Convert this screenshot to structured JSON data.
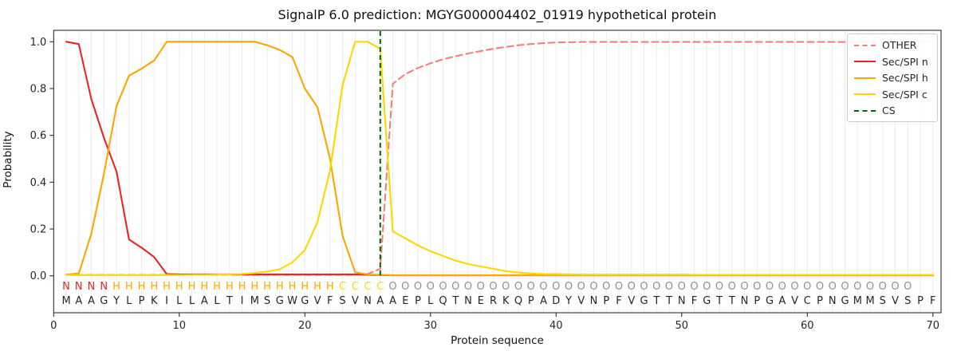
{
  "chart_data": {
    "type": "line",
    "title": "SignalP 6.0 prediction: MGYG000004402_01919 hypothetical protein",
    "xlabel": "Protein sequence",
    "ylabel": "Probability",
    "xlim": [
      0,
      70.6
    ],
    "ylim": [
      -0.16,
      1.05
    ],
    "xticks": [
      0,
      10,
      20,
      30,
      40,
      50,
      60,
      70
    ],
    "yticks": [
      "0.0",
      "0.2",
      "0.4",
      "0.6",
      "0.8",
      "1.0"
    ],
    "grid": "light vertical gridline at every residue position 1-70",
    "legend_position": "upper right",
    "x_positions": "residue index 1..70",
    "sequence": "MAAGYLPKILLALTIMSGWGVFSVNAAEPLQTNERKQPADYVNPFVGTTNFGTTNPGAVCPNGMMSVSPF",
    "residue_states": "NNNNHHHHHHHHHHHHHHHHHHCCCCOOOOOOOOOOOOOOOOOOOOOOOOOOOOOOOOOOOOOOOOOO",
    "state_colors": {
      "N": "#ed2424",
      "H": "#ffa500",
      "C": "#ffd700",
      "O": "#909090"
    },
    "series": [
      {
        "name": "OTHER",
        "color": "#f08080",
        "style": "dashed",
        "values": [
          0.004,
          0.004,
          0.004,
          0.004,
          0.004,
          0.004,
          0.004,
          0.004,
          0.004,
          0.004,
          0.004,
          0.004,
          0.004,
          0.004,
          0.004,
          0.004,
          0.004,
          0.004,
          0.004,
          0.004,
          0.004,
          0.004,
          0.004,
          0.004,
          0.008,
          0.03,
          0.82,
          0.862,
          0.888,
          0.908,
          0.925,
          0.938,
          0.95,
          0.96,
          0.97,
          0.978,
          0.985,
          0.99,
          0.994,
          0.997,
          0.998,
          0.999,
          0.999,
          0.999,
          0.999,
          0.999,
          0.999,
          0.999,
          0.999,
          0.999,
          0.999,
          0.999,
          0.999,
          0.999,
          0.999,
          0.999,
          0.999,
          0.999,
          0.999,
          0.999,
          0.999,
          0.999,
          0.999,
          0.999,
          0.999,
          0.999,
          0.999,
          0.999,
          0.999,
          0.999
        ]
      },
      {
        "name": "Sec/SPI n",
        "color": "#ed2424",
        "style": "solid",
        "values": [
          1.0,
          0.99,
          0.755,
          0.59,
          0.445,
          0.155,
          0.12,
          0.08,
          0.007,
          0.006,
          0.006,
          0.006,
          0.006,
          0.006,
          0.006,
          0.006,
          0.006,
          0.006,
          0.006,
          0.006,
          0.006,
          0.006,
          0.006,
          0.006,
          0.004,
          0.003,
          0.002,
          0.002,
          0.002,
          0.002,
          0.002,
          0.002,
          0.002,
          0.002,
          0.002,
          0.002,
          0.002,
          0.002,
          0.002,
          0.002,
          0.002,
          0.002,
          0.002,
          0.002,
          0.002,
          0.002,
          0.002,
          0.002,
          0.002,
          0.002,
          0.002,
          0.002,
          0.002,
          0.002,
          0.002,
          0.002,
          0.002,
          0.002,
          0.002,
          0.002,
          0.002,
          0.002,
          0.002,
          0.002,
          0.002,
          0.002,
          0.002,
          0.002,
          0.002,
          0.002
        ]
      },
      {
        "name": "Sec/SPI h",
        "color": "#ffa500",
        "style": "solid",
        "values": [
          0.005,
          0.01,
          0.18,
          0.435,
          0.725,
          0.855,
          0.885,
          0.92,
          1.0,
          1.0,
          1.0,
          1.0,
          1.0,
          1.0,
          1.0,
          1.0,
          0.985,
          0.965,
          0.935,
          0.8,
          0.72,
          0.5,
          0.17,
          0.015,
          0.006,
          0.004,
          0.002,
          0.002,
          0.002,
          0.002,
          0.002,
          0.002,
          0.002,
          0.002,
          0.002,
          0.002,
          0.002,
          0.002,
          0.002,
          0.002,
          0.002,
          0.002,
          0.002,
          0.002,
          0.002,
          0.002,
          0.002,
          0.002,
          0.002,
          0.002,
          0.002,
          0.002,
          0.002,
          0.002,
          0.002,
          0.002,
          0.002,
          0.002,
          0.002,
          0.002,
          0.002,
          0.002,
          0.002,
          0.002,
          0.002,
          0.002,
          0.002,
          0.002,
          0.002,
          0.002
        ]
      },
      {
        "name": "Sec/SPI c",
        "color": "#ffd700",
        "style": "solid",
        "values": [
          0.003,
          0.003,
          0.003,
          0.003,
          0.003,
          0.003,
          0.003,
          0.003,
          0.003,
          0.003,
          0.004,
          0.004,
          0.005,
          0.006,
          0.008,
          0.012,
          0.018,
          0.028,
          0.057,
          0.11,
          0.23,
          0.45,
          0.815,
          1.0,
          1.0,
          0.97,
          0.19,
          0.16,
          0.13,
          0.105,
          0.085,
          0.065,
          0.05,
          0.04,
          0.03,
          0.02,
          0.014,
          0.01,
          0.008,
          0.007,
          0.006,
          0.005,
          0.005,
          0.005,
          0.005,
          0.005,
          0.005,
          0.005,
          0.005,
          0.005,
          0.004,
          0.004,
          0.004,
          0.004,
          0.004,
          0.004,
          0.004,
          0.004,
          0.004,
          0.004,
          0.004,
          0.004,
          0.004,
          0.004,
          0.004,
          0.004,
          0.004,
          0.004,
          0.004,
          0.004
        ]
      }
    ],
    "cs_line": {
      "name": "CS",
      "position": 26,
      "color": "#006400",
      "style": "dashed"
    },
    "axis_color": "#1a1a1a",
    "grid_color": "#ececec",
    "sequence_color": "#262626"
  }
}
